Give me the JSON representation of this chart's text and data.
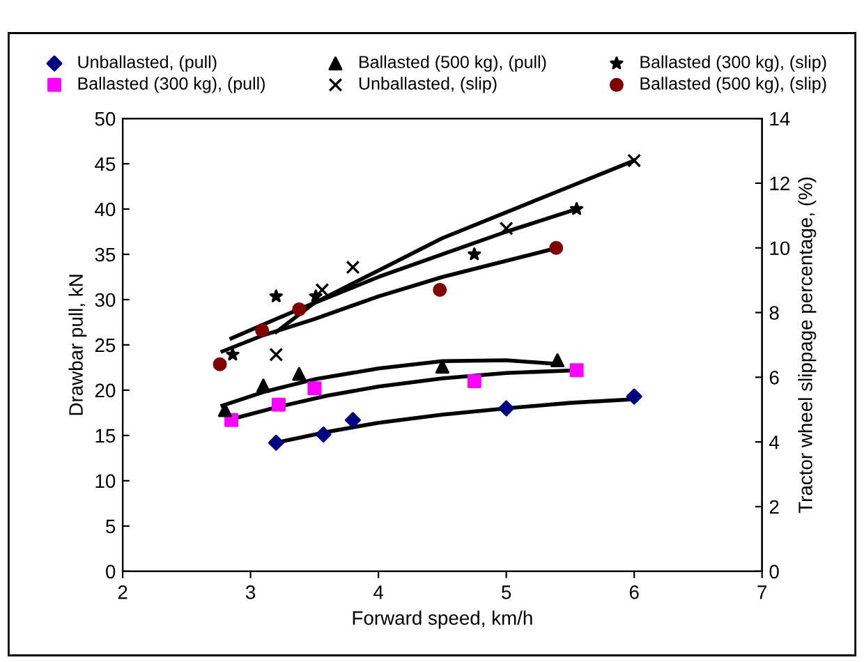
{
  "chart_data": {
    "type": "scatter",
    "xlabel": "Forward speed, km/h",
    "ylabel": "Drawbar pull, kN",
    "y2label": "Tractor wheel slippage percentage, (%)",
    "xlim": [
      2,
      7
    ],
    "xticks": [
      2,
      3,
      4,
      5,
      6,
      7
    ],
    "ylim": [
      0,
      50
    ],
    "yticks": [
      0,
      5,
      10,
      15,
      20,
      25,
      30,
      35,
      40,
      45,
      50
    ],
    "y2lim": [
      0,
      14
    ],
    "y2ticks": [
      0,
      2,
      4,
      6,
      8,
      10,
      12,
      14
    ],
    "grid": false,
    "legend": "top",
    "series": [
      {
        "name": "Unballasted, (pull)",
        "color": "#000080",
        "marker": "diamond",
        "x": [
          3.2,
          3.57,
          3.8,
          5.0,
          6.0
        ],
        "values": [
          14.2,
          15.1,
          16.7,
          18.0,
          19.3
        ]
      },
      {
        "name": "Ballasted (300 kg), (pull)",
        "color": "#ff00ff",
        "marker": "square",
        "x": [
          2.85,
          3.22,
          3.5,
          4.75,
          5.55
        ],
        "values": [
          16.7,
          18.4,
          20.2,
          21.0,
          22.2
        ]
      },
      {
        "name": "Ballasted (500 kg), (pull)",
        "color": "#000000",
        "marker": "triangle",
        "x": [
          2.8,
          3.1,
          3.38,
          4.5,
          5.4
        ],
        "values": [
          17.8,
          20.5,
          21.8,
          22.6,
          23.3
        ]
      },
      {
        "name": "Unballasted, (slip)",
        "color": "#000000",
        "marker": "cross",
        "axis": "y2",
        "x": [
          3.2,
          3.56,
          3.8,
          5.0,
          6.0
        ],
        "values": [
          6.7,
          8.7,
          9.4,
          10.6,
          12.7
        ]
      },
      {
        "name": "Ballasted (300 kg), (slip)",
        "color": "#000000",
        "marker": "star",
        "axis": "y2",
        "x": [
          2.86,
          3.2,
          3.51,
          4.75,
          5.55
        ],
        "values": [
          6.7,
          8.5,
          8.5,
          9.8,
          11.2
        ]
      },
      {
        "name": "Ballasted (500 kg), (slip)",
        "color": "#800000",
        "marker": "circle",
        "axis": "y2",
        "x": [
          2.76,
          3.09,
          3.38,
          4.48,
          5.39
        ],
        "values": [
          6.4,
          7.45,
          8.1,
          8.7,
          10.0
        ]
      },
      {
        "type": "line",
        "color": "#000000",
        "marker": "none",
        "x": [
          3.2,
          3.6,
          4.0,
          4.5,
          5.0,
          5.5,
          6.0
        ],
        "values": [
          14.2,
          15.4,
          16.4,
          17.3,
          18.0,
          18.6,
          19.0
        ]
      },
      {
        "type": "line",
        "color": "#000000",
        "marker": "none",
        "x": [
          2.85,
          3.2,
          3.6,
          4.0,
          4.5,
          5.0,
          5.55
        ],
        "values": [
          16.8,
          18.1,
          19.4,
          20.4,
          21.3,
          21.9,
          22.2
        ]
      },
      {
        "type": "line",
        "color": "#000000",
        "marker": "none",
        "x": [
          2.78,
          3.1,
          3.5,
          4.0,
          4.5,
          5.0,
          5.4
        ],
        "values": [
          18.3,
          19.8,
          21.2,
          22.4,
          23.2,
          23.3,
          22.9
        ]
      },
      {
        "type": "line",
        "color": "#000000",
        "marker": "none",
        "axis": "y2",
        "x": [
          3.2,
          3.5,
          4.0,
          4.5,
          5.0,
          5.5,
          6.0
        ],
        "values": [
          7.4,
          8.3,
          9.3,
          10.3,
          11.1,
          11.9,
          12.7
        ]
      },
      {
        "type": "line",
        "color": "#000000",
        "marker": "none",
        "axis": "y2",
        "x": [
          2.85,
          3.2,
          3.5,
          4.0,
          4.5,
          5.0,
          5.55
        ],
        "values": [
          7.2,
          7.8,
          8.3,
          9.1,
          9.8,
          10.5,
          11.2
        ]
      },
      {
        "type": "line",
        "color": "#000000",
        "marker": "none",
        "axis": "y2",
        "x": [
          2.78,
          3.1,
          3.5,
          4.0,
          4.5,
          5.0,
          5.4
        ],
        "values": [
          6.8,
          7.3,
          7.8,
          8.5,
          9.1,
          9.6,
          10.0
        ]
      }
    ]
  }
}
